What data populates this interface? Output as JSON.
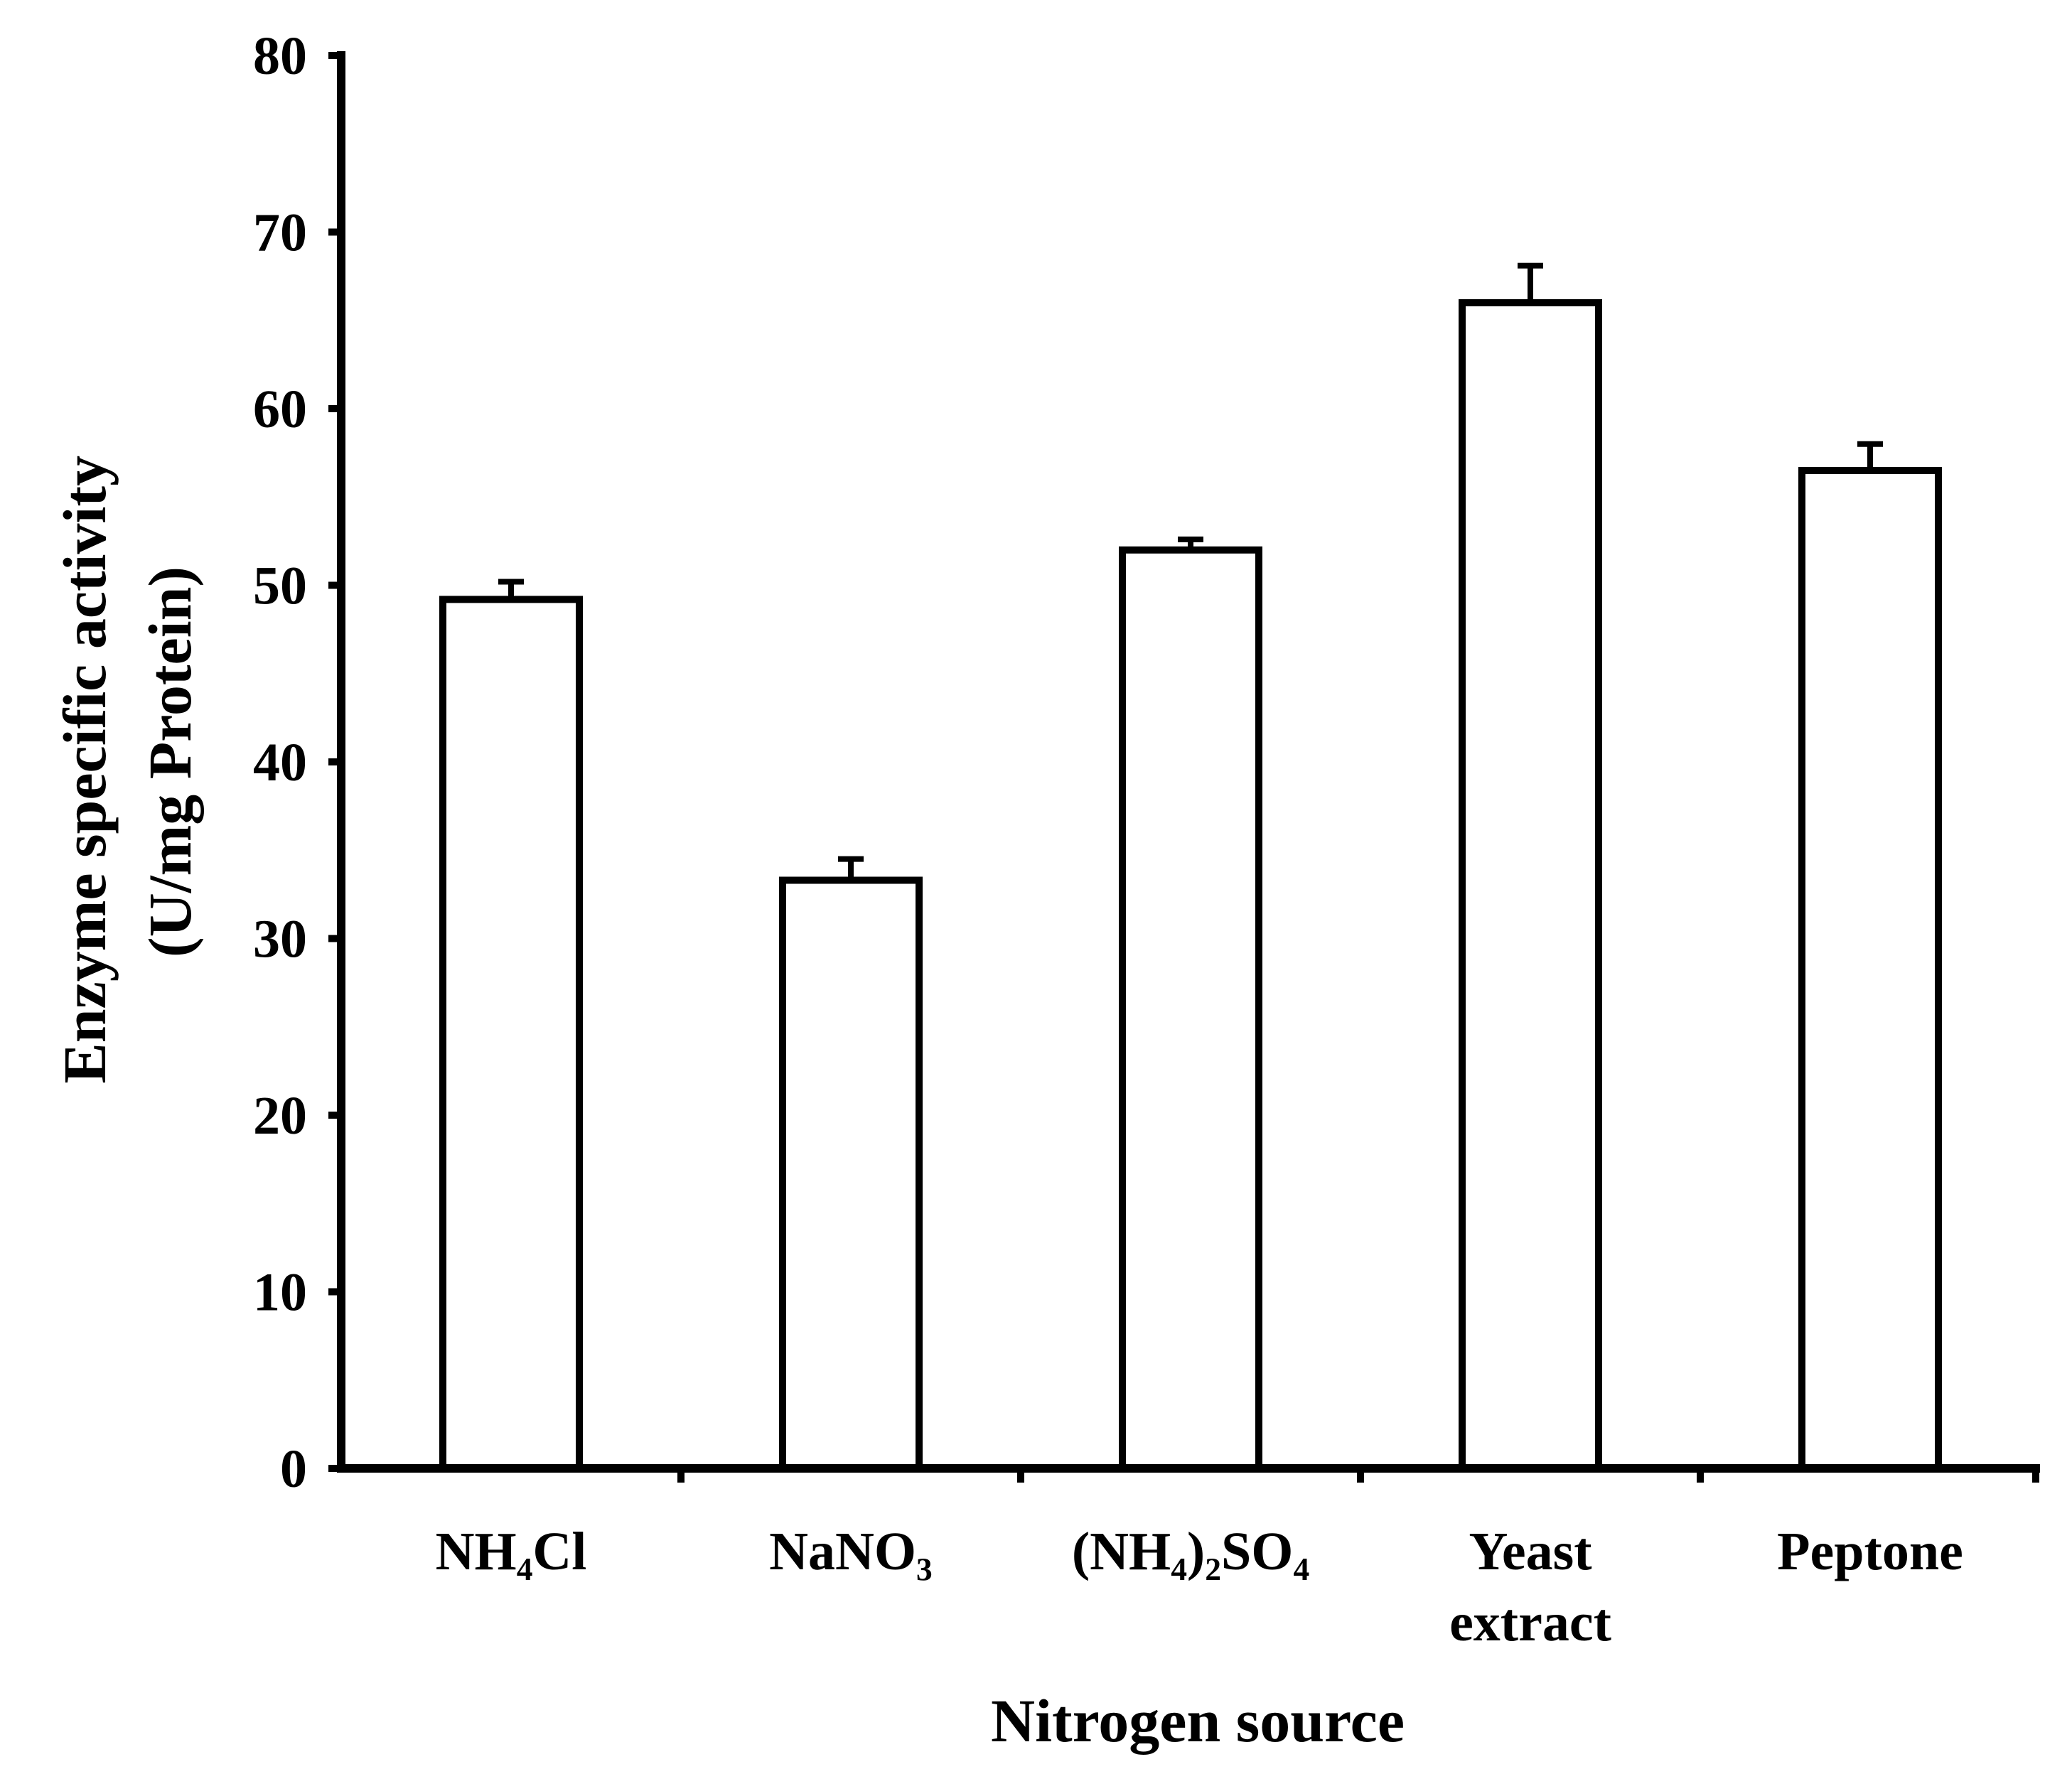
{
  "chart_data": {
    "type": "bar",
    "title": "",
    "xlabel": "Nitrogen source",
    "ylabel_line1": "Enzyme specific activity",
    "ylabel_line2": "(U/mg Protein)",
    "ylim": [
      0,
      80
    ],
    "yticks": [
      0,
      10,
      20,
      30,
      40,
      50,
      60,
      70,
      80
    ],
    "categories": [
      [
        "NH₄Cl"
      ],
      [
        "NaNO₃"
      ],
      [
        "(NH₄)₂SO₄"
      ],
      [
        "Yeast",
        "extract"
      ],
      [
        "Peptone"
      ]
    ],
    "values": [
      49.2,
      33.3,
      52.0,
      66.0,
      56.5
    ],
    "errors": [
      1.0,
      1.2,
      0.6,
      2.1,
      1.5
    ],
    "bar_fill": "#ffffff",
    "bar_stroke": "#000000"
  }
}
